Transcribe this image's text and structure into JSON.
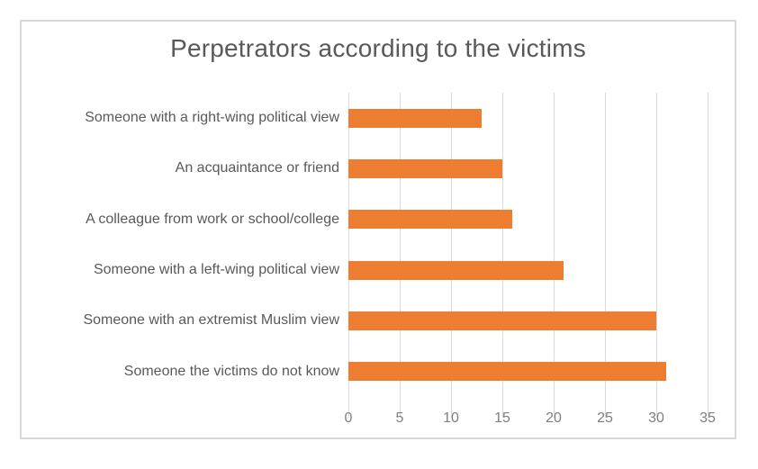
{
  "chart_data": {
    "type": "bar",
    "orientation": "horizontal",
    "title": "Perpetrators according to the victims",
    "categories": [
      "Someone with a right-wing political view",
      "An acquaintance or friend",
      "A colleague from work or school/college",
      "Someone with a left-wing political view",
      "Someone with an extremist Muslim view",
      "Someone the victims do not know"
    ],
    "values": [
      13,
      15,
      16,
      21,
      30,
      31
    ],
    "xlabel": "",
    "ylabel": "",
    "xlim": [
      0,
      35
    ],
    "xticks": [
      0,
      5,
      10,
      15,
      20,
      25,
      30,
      35
    ],
    "grid": "vertical-only",
    "legend_position": "none",
    "colors": {
      "bar": "#ed7d31",
      "gridline": "#d9d9d9",
      "frame_border": "#d9d9d9",
      "title_text": "#595959",
      "category_text": "#595959",
      "tick_text": "#7f7f7f",
      "background": "#ffffff"
    }
  }
}
